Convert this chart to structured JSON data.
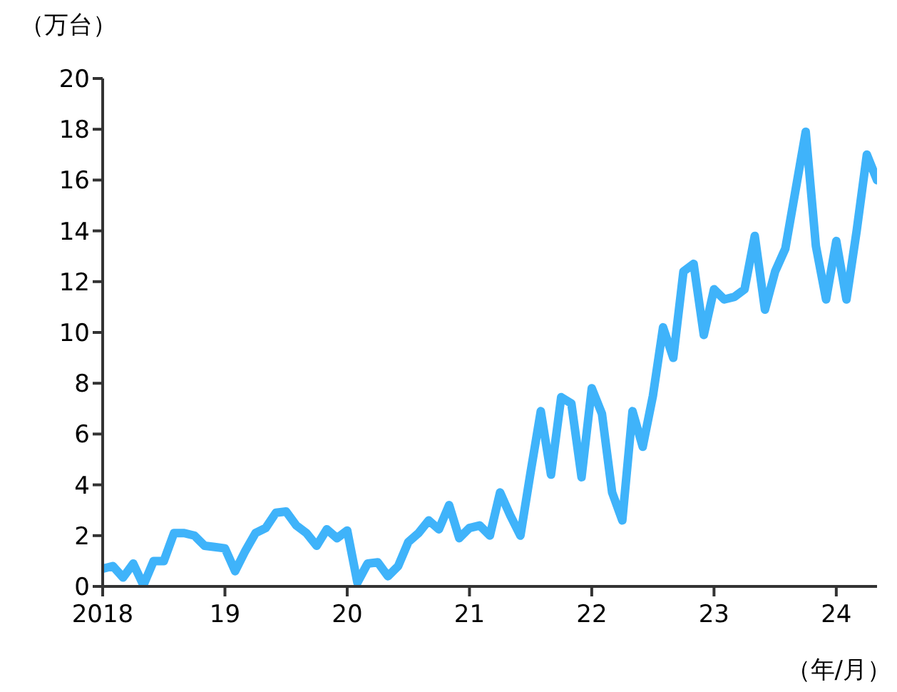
{
  "chart_data": {
    "type": "line",
    "ylabel": "（万台）",
    "xlabel": "（年/月）",
    "x": [
      "2018-01",
      "2018-02",
      "2018-03",
      "2018-04",
      "2018-05",
      "2018-06",
      "2018-07",
      "2018-08",
      "2018-09",
      "2018-10",
      "2018-11",
      "2018-12",
      "2019-01",
      "2019-02",
      "2019-03",
      "2019-04",
      "2019-05",
      "2019-06",
      "2019-07",
      "2019-08",
      "2019-09",
      "2019-10",
      "2019-11",
      "2019-12",
      "2020-01",
      "2020-02",
      "2020-03",
      "2020-04",
      "2020-05",
      "2020-06",
      "2020-07",
      "2020-08",
      "2020-09",
      "2020-10",
      "2020-11",
      "2020-12",
      "2021-01",
      "2021-02",
      "2021-03",
      "2021-04",
      "2021-05",
      "2021-06",
      "2021-07",
      "2021-08",
      "2021-09",
      "2021-10",
      "2021-11",
      "2021-12",
      "2022-01",
      "2022-02",
      "2022-03",
      "2022-04",
      "2022-05",
      "2022-06",
      "2022-07",
      "2022-08",
      "2022-09",
      "2022-10",
      "2022-11",
      "2022-12",
      "2023-01",
      "2023-02",
      "2023-03",
      "2023-04",
      "2023-05",
      "2023-06",
      "2023-07",
      "2023-08",
      "2023-09",
      "2023-10",
      "2023-11",
      "2023-12",
      "2024-01",
      "2024-02",
      "2024-03",
      "2024-04",
      "2024-05"
    ],
    "series": [
      {
        "color": "#3fb3fa",
        "values": [
          0.7,
          0.8,
          0.35,
          0.9,
          0.05,
          1.0,
          1.0,
          2.1,
          2.1,
          2.0,
          1.6,
          1.55,
          1.5,
          0.6,
          1.4,
          2.1,
          2.3,
          2.9,
          2.95,
          2.4,
          2.1,
          1.6,
          2.25,
          1.9,
          2.2,
          0.15,
          0.9,
          0.95,
          0.4,
          0.8,
          1.75,
          2.1,
          2.6,
          2.25,
          3.2,
          1.9,
          2.3,
          2.4,
          2.0,
          3.7,
          2.8,
          2.0,
          4.5,
          6.9,
          4.4,
          7.45,
          7.2,
          4.3,
          7.8,
          6.8,
          3.7,
          2.6,
          6.9,
          5.5,
          7.5,
          10.2,
          9.0,
          12.4,
          12.7,
          9.9,
          11.7,
          11.3,
          11.4,
          11.7,
          13.8,
          10.9,
          12.4,
          13.3,
          15.6,
          17.9,
          13.4,
          11.3,
          13.6,
          11.3,
          14.0,
          17.0,
          16.0
        ]
      }
    ],
    "xlim": [
      "2018-01",
      "2024-05"
    ],
    "xticks": [
      {
        "value": "2018-01",
        "label": "2018"
      },
      {
        "value": "2019-01",
        "label": "19"
      },
      {
        "value": "2020-01",
        "label": "20"
      },
      {
        "value": "2021-01",
        "label": "21"
      },
      {
        "value": "2022-01",
        "label": "22"
      },
      {
        "value": "2023-01",
        "label": "23"
      },
      {
        "value": "2024-01",
        "label": "24"
      }
    ],
    "ylim": [
      0,
      20
    ],
    "yticks": [
      0,
      2,
      4,
      6,
      8,
      10,
      12,
      14,
      16,
      18,
      20
    ],
    "grid": false,
    "legend": false,
    "marker": "none",
    "line_style": "solid"
  }
}
